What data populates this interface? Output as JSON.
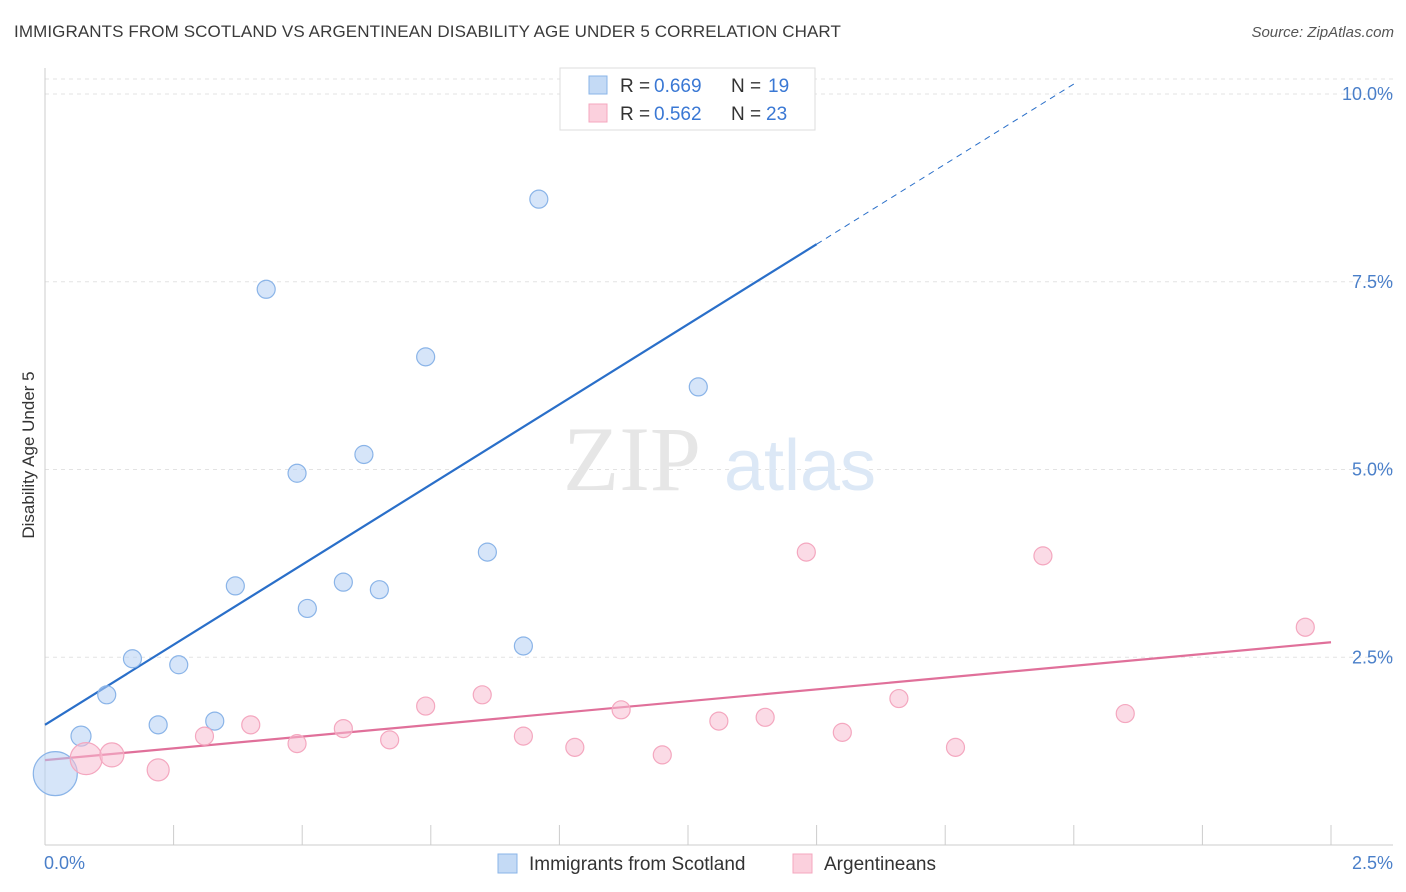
{
  "header": {
    "title": "IMMIGRANTS FROM SCOTLAND VS ARGENTINEAN DISABILITY AGE UNDER 5 CORRELATION CHART",
    "source": "Source: ZipAtlas.com"
  },
  "watermark": {
    "zip": "ZIP",
    "atlas": "atlas"
  },
  "chart_data": {
    "type": "scatter",
    "ylabel": "Disability Age Under 5",
    "xlim": [
      0.0,
      2.5
    ],
    "ylim": [
      0.0,
      10.2
    ],
    "x_tick_labels": {
      "min": "0.0%",
      "max": "2.5%"
    },
    "y_ticks": [
      {
        "value": 2.5,
        "label": "2.5%"
      },
      {
        "value": 5.0,
        "label": "5.0%"
      },
      {
        "value": 7.5,
        "label": "7.5%"
      },
      {
        "value": 10.0,
        "label": "10.0%"
      }
    ],
    "grid": true,
    "legend_top": {
      "placement": "top-center",
      "rows": [
        {
          "r_label": "R = ",
          "r_value": "0.669",
          "n_label": "N = ",
          "n_value": "19"
        },
        {
          "r_label": "R = ",
          "r_value": "0.562",
          "n_label": "N = ",
          "n_value": "23"
        }
      ]
    },
    "series": [
      {
        "name": "Immigrants from Scotland",
        "color": "#8ab4e8",
        "line_color": "#2a6fc9",
        "points": [
          [
            0.02,
            0.95,
            22
          ],
          [
            0.07,
            1.45,
            10
          ],
          [
            0.12,
            2.0,
            9
          ],
          [
            0.17,
            2.48,
            9
          ],
          [
            0.22,
            1.6,
            9
          ],
          [
            0.26,
            2.4,
            9
          ],
          [
            0.33,
            1.65,
            9
          ],
          [
            0.37,
            3.45,
            9
          ],
          [
            0.43,
            7.4,
            9
          ],
          [
            0.49,
            4.95,
            9
          ],
          [
            0.51,
            3.15,
            9
          ],
          [
            0.58,
            3.5,
            9
          ],
          [
            0.62,
            5.2,
            9
          ],
          [
            0.65,
            3.4,
            9
          ],
          [
            0.74,
            6.5,
            9
          ],
          [
            0.86,
            3.9,
            9
          ],
          [
            0.93,
            2.65,
            9
          ],
          [
            0.96,
            8.6,
            9
          ],
          [
            1.27,
            6.1,
            9
          ]
        ],
        "trend": {
          "x0": 0.0,
          "y0": 1.6,
          "x1": 1.5,
          "y1": 8.0,
          "dash_to_x": 2.0
        }
      },
      {
        "name": "Argentineans",
        "color": "#f4a7bf",
        "line_color": "#e0709a",
        "points": [
          [
            0.08,
            1.15,
            16
          ],
          [
            0.13,
            1.2,
            12
          ],
          [
            0.22,
            1.0,
            11
          ],
          [
            0.31,
            1.45,
            9
          ],
          [
            0.4,
            1.6,
            9
          ],
          [
            0.49,
            1.35,
            9
          ],
          [
            0.58,
            1.55,
            9
          ],
          [
            0.67,
            1.4,
            9
          ],
          [
            0.74,
            1.85,
            9
          ],
          [
            0.85,
            2.0,
            9
          ],
          [
            0.93,
            1.45,
            9
          ],
          [
            1.03,
            1.3,
            9
          ],
          [
            1.12,
            1.8,
            9
          ],
          [
            1.2,
            1.2,
            9
          ],
          [
            1.31,
            1.65,
            9
          ],
          [
            1.4,
            1.7,
            9
          ],
          [
            1.48,
            3.9,
            9
          ],
          [
            1.55,
            1.5,
            9
          ],
          [
            1.66,
            1.95,
            9
          ],
          [
            1.77,
            1.3,
            9
          ],
          [
            1.94,
            3.85,
            9
          ],
          [
            2.1,
            1.75,
            9
          ],
          [
            2.45,
            2.9,
            9
          ]
        ],
        "trend": {
          "x0": 0.0,
          "y0": 1.13,
          "x1": 2.5,
          "y1": 2.7
        }
      }
    ]
  }
}
